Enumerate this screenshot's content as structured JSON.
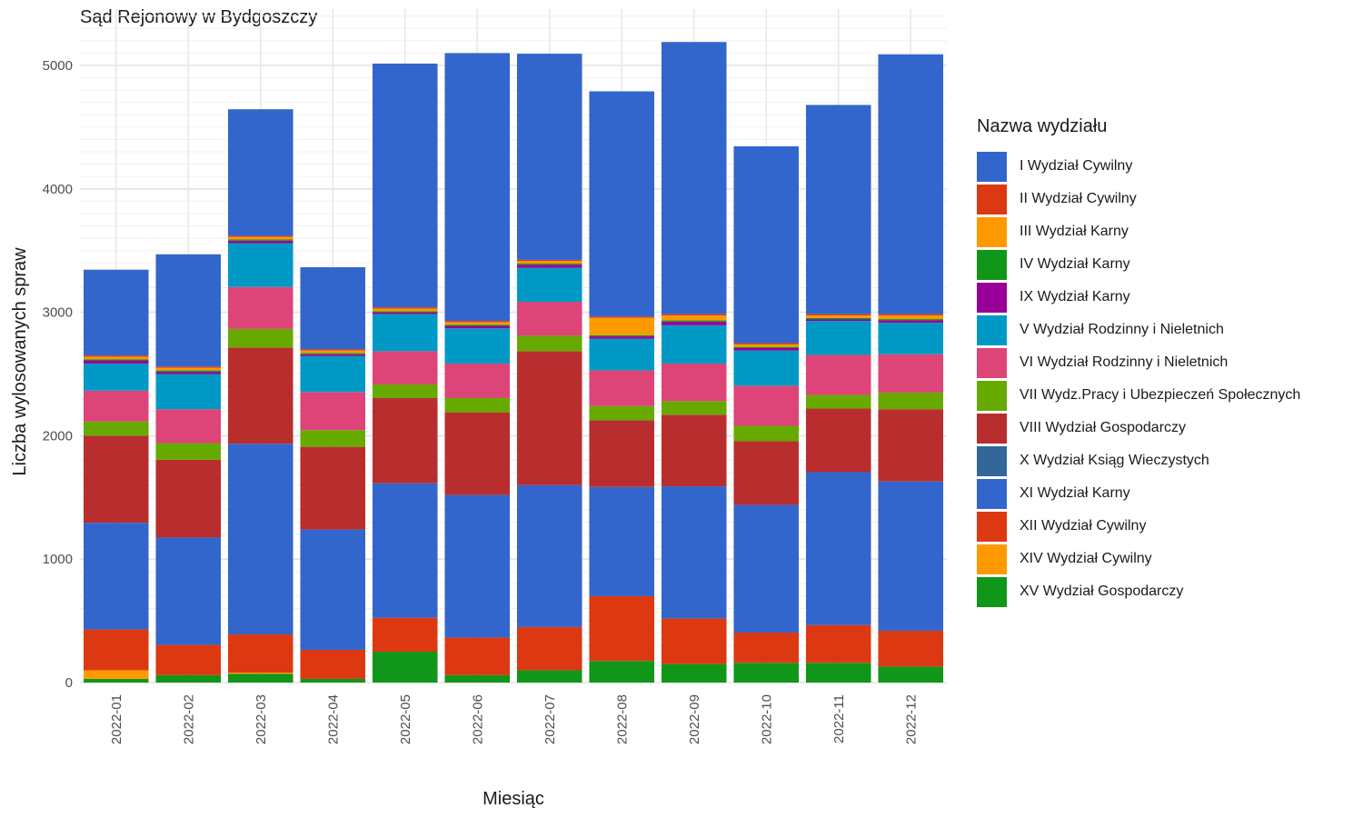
{
  "chart_data": {
    "type": "bar",
    "stacked": true,
    "title": "Sąd Rejonowy w Bydgoszczy",
    "xlabel": "Miesiąc",
    "ylabel": "Liczba wylosowanych spraw",
    "ylim": [
      0,
      5400
    ],
    "yticks": [
      0,
      1000,
      2000,
      3000,
      4000,
      5000
    ],
    "grid": true,
    "legend_position": "right",
    "legend_title": "Nazwa wydziału",
    "categories": [
      "2022-01",
      "2022-02",
      "2022-03",
      "2022-04",
      "2022-05",
      "2022-06",
      "2022-07",
      "2022-08",
      "2022-09",
      "2022-10",
      "2022-11",
      "2022-12"
    ],
    "series": [
      {
        "name": "XV Wydział Gospodarczy",
        "color": "#109618",
        "values": [
          30,
          60,
          70,
          30,
          250,
          60,
          100,
          175,
          150,
          160,
          160,
          130
        ]
      },
      {
        "name": "XIV Wydział Cywilny",
        "color": "#FF9900",
        "values": [
          70,
          0,
          10,
          0,
          0,
          0,
          0,
          0,
          0,
          0,
          0,
          0
        ]
      },
      {
        "name": "XII Wydział Cywilny",
        "color": "#DC3912",
        "values": [
          330,
          245,
          310,
          235,
          275,
          305,
          350,
          525,
          370,
          245,
          305,
          290
        ]
      },
      {
        "name": "XI Wydział Karny",
        "color": "#3366CC",
        "values": [
          865,
          870,
          1545,
          975,
          1090,
          1155,
          1150,
          885,
          1070,
          1035,
          1240,
          1210
        ]
      },
      {
        "name": "X Wydział Ksiąg Wieczystych",
        "color": "#336699",
        "values": [
          0,
          0,
          0,
          0,
          0,
          0,
          0,
          0,
          0,
          0,
          0,
          0
        ]
      },
      {
        "name": "VIII Wydział Gospodarczy",
        "color": "#B82E2E",
        "values": [
          705,
          630,
          780,
          670,
          690,
          670,
          1085,
          540,
          580,
          515,
          515,
          585
        ]
      },
      {
        "name": "VII Wydz.Pracy i Ubezpieczeń Społecznych",
        "color": "#66AA00",
        "values": [
          115,
          135,
          150,
          135,
          110,
          115,
          125,
          115,
          110,
          125,
          110,
          135
        ]
      },
      {
        "name": "VI Wydział Rodzinny i Nieletnich",
        "color": "#DD4477",
        "values": [
          250,
          275,
          340,
          310,
          270,
          280,
          275,
          290,
          305,
          325,
          325,
          310
        ]
      },
      {
        "name": "V Wydział Rodzinny i Nieletnich",
        "color": "#0099C6",
        "values": [
          220,
          285,
          355,
          290,
          300,
          285,
          275,
          255,
          310,
          285,
          275,
          255
        ]
      },
      {
        "name": "IX Wydział Karny",
        "color": "#990099",
        "values": [
          25,
          20,
          20,
          15,
          15,
          20,
          25,
          20,
          30,
          20,
          15,
          20
        ]
      },
      {
        "name": "IV Wydział Karny",
        "color": "#109618",
        "values": [
          10,
          10,
          10,
          10,
          10,
          10,
          10,
          10,
          10,
          10,
          10,
          10
        ]
      },
      {
        "name": "III Wydział Karny",
        "color": "#FF9900",
        "values": [
          20,
          20,
          20,
          20,
          20,
          20,
          20,
          140,
          40,
          20,
          20,
          30
        ]
      },
      {
        "name": "II Wydział Cywilny",
        "color": "#DC3912",
        "values": [
          10,
          10,
          10,
          10,
          10,
          10,
          10,
          10,
          10,
          10,
          10,
          10
        ]
      },
      {
        "name": "I Wydział Cywilny",
        "color": "#3366CC",
        "values": [
          695,
          910,
          1025,
          665,
          1975,
          2170,
          1670,
          1825,
          2205,
          1595,
          1695,
          2105
        ]
      }
    ],
    "legend_order": [
      "I Wydział Cywilny",
      "II Wydział Cywilny",
      "III Wydział Karny",
      "IV Wydział Karny",
      "IX Wydział Karny",
      "V Wydział Rodzinny i Nieletnich",
      "VI Wydział Rodzinny i Nieletnich",
      "VII Wydz.Pracy i Ubezpieczeń Społecznych",
      "VIII Wydział Gospodarczy",
      "X Wydział Ksiąg Wieczystych",
      "XI Wydział Karny",
      "XII Wydział Cywilny",
      "XIV Wydział Cywilny",
      "XV Wydział Gospodarczy"
    ]
  }
}
